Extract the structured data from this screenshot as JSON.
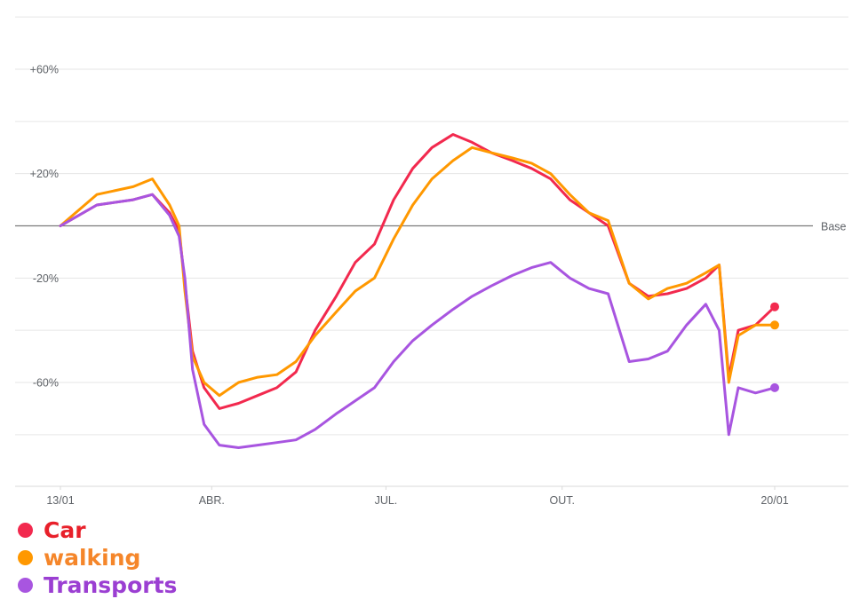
{
  "chart_data": {
    "type": "line",
    "baseline_label": "Base",
    "y_ticks": [
      {
        "value": 60,
        "label": "+60%"
      },
      {
        "value": 20,
        "label": "+20%"
      },
      {
        "value": -20,
        "label": "-20%"
      },
      {
        "value": -60,
        "label": "-60%"
      }
    ],
    "ylim": [
      -100,
      80
    ],
    "x_ticks": [
      {
        "date": "2020-01-13",
        "label": "13/01"
      },
      {
        "date": "2020-04-01",
        "label": "ABR."
      },
      {
        "date": "2020-07-01",
        "label": "JUL."
      },
      {
        "date": "2020-10-01",
        "label": "OUT."
      },
      {
        "date": "2021-01-20",
        "label": "20/01"
      }
    ],
    "xlim": [
      "2020-01-13",
      "2021-01-20"
    ],
    "grid": true,
    "legend_position": "bottom-left",
    "series": [
      {
        "name": "Car",
        "color": "#f2294e",
        "points": [
          [
            "2020-01-13",
            0
          ],
          [
            "2020-02-01",
            8
          ],
          [
            "2020-02-20",
            10
          ],
          [
            "2020-03-01",
            12
          ],
          [
            "2020-03-10",
            5
          ],
          [
            "2020-03-15",
            -2
          ],
          [
            "2020-03-18",
            -22
          ],
          [
            "2020-03-22",
            -48
          ],
          [
            "2020-03-28",
            -62
          ],
          [
            "2020-04-05",
            -70
          ],
          [
            "2020-04-15",
            -68
          ],
          [
            "2020-04-25",
            -65
          ],
          [
            "2020-05-05",
            -62
          ],
          [
            "2020-05-15",
            -56
          ],
          [
            "2020-05-25",
            -40
          ],
          [
            "2020-06-05",
            -27
          ],
          [
            "2020-06-15",
            -14
          ],
          [
            "2020-06-25",
            -7
          ],
          [
            "2020-07-05",
            10
          ],
          [
            "2020-07-15",
            22
          ],
          [
            "2020-07-25",
            30
          ],
          [
            "2020-08-05",
            35
          ],
          [
            "2020-08-15",
            32
          ],
          [
            "2020-08-25",
            28
          ],
          [
            "2020-09-05",
            25
          ],
          [
            "2020-09-15",
            22
          ],
          [
            "2020-09-25",
            18
          ],
          [
            "2020-10-05",
            10
          ],
          [
            "2020-10-15",
            5
          ],
          [
            "2020-10-25",
            0
          ],
          [
            "2020-11-05",
            -22
          ],
          [
            "2020-11-15",
            -27
          ],
          [
            "2020-11-25",
            -26
          ],
          [
            "2020-12-05",
            -24
          ],
          [
            "2020-12-15",
            -20
          ],
          [
            "2020-12-22",
            -15
          ],
          [
            "2020-12-27",
            -58
          ],
          [
            "2021-01-01",
            -40
          ],
          [
            "2021-01-10",
            -38
          ],
          [
            "2021-01-20",
            -31
          ]
        ]
      },
      {
        "name": "walking",
        "color": "#ff9800",
        "points": [
          [
            "2020-01-13",
            0
          ],
          [
            "2020-02-01",
            12
          ],
          [
            "2020-02-20",
            15
          ],
          [
            "2020-03-01",
            18
          ],
          [
            "2020-03-10",
            8
          ],
          [
            "2020-03-15",
            0
          ],
          [
            "2020-03-18",
            -25
          ],
          [
            "2020-03-22",
            -50
          ],
          [
            "2020-03-28",
            -60
          ],
          [
            "2020-04-05",
            -65
          ],
          [
            "2020-04-15",
            -60
          ],
          [
            "2020-04-25",
            -58
          ],
          [
            "2020-05-05",
            -57
          ],
          [
            "2020-05-15",
            -52
          ],
          [
            "2020-05-25",
            -42
          ],
          [
            "2020-06-05",
            -33
          ],
          [
            "2020-06-15",
            -25
          ],
          [
            "2020-06-25",
            -20
          ],
          [
            "2020-07-05",
            -5
          ],
          [
            "2020-07-15",
            8
          ],
          [
            "2020-07-25",
            18
          ],
          [
            "2020-08-05",
            25
          ],
          [
            "2020-08-15",
            30
          ],
          [
            "2020-08-25",
            28
          ],
          [
            "2020-09-05",
            26
          ],
          [
            "2020-09-15",
            24
          ],
          [
            "2020-09-25",
            20
          ],
          [
            "2020-10-05",
            12
          ],
          [
            "2020-10-15",
            5
          ],
          [
            "2020-10-25",
            2
          ],
          [
            "2020-11-05",
            -22
          ],
          [
            "2020-11-15",
            -28
          ],
          [
            "2020-11-25",
            -24
          ],
          [
            "2020-12-05",
            -22
          ],
          [
            "2020-12-15",
            -18
          ],
          [
            "2020-12-22",
            -15
          ],
          [
            "2020-12-27",
            -60
          ],
          [
            "2021-01-01",
            -42
          ],
          [
            "2021-01-10",
            -38
          ],
          [
            "2021-01-20",
            -38
          ]
        ]
      },
      {
        "name": "Transports",
        "color": "#a855e0",
        "points": [
          [
            "2020-01-13",
            0
          ],
          [
            "2020-02-01",
            8
          ],
          [
            "2020-02-20",
            10
          ],
          [
            "2020-03-01",
            12
          ],
          [
            "2020-03-10",
            4
          ],
          [
            "2020-03-15",
            -4
          ],
          [
            "2020-03-18",
            -20
          ],
          [
            "2020-03-22",
            -55
          ],
          [
            "2020-03-28",
            -76
          ],
          [
            "2020-04-05",
            -84
          ],
          [
            "2020-04-15",
            -85
          ],
          [
            "2020-04-25",
            -84
          ],
          [
            "2020-05-05",
            -83
          ],
          [
            "2020-05-15",
            -82
          ],
          [
            "2020-05-25",
            -78
          ],
          [
            "2020-06-05",
            -72
          ],
          [
            "2020-06-15",
            -67
          ],
          [
            "2020-06-25",
            -62
          ],
          [
            "2020-07-05",
            -52
          ],
          [
            "2020-07-15",
            -44
          ],
          [
            "2020-07-25",
            -38
          ],
          [
            "2020-08-05",
            -32
          ],
          [
            "2020-08-15",
            -27
          ],
          [
            "2020-08-25",
            -23
          ],
          [
            "2020-09-05",
            -19
          ],
          [
            "2020-09-15",
            -16
          ],
          [
            "2020-09-25",
            -14
          ],
          [
            "2020-10-05",
            -20
          ],
          [
            "2020-10-15",
            -24
          ],
          [
            "2020-10-25",
            -26
          ],
          [
            "2020-11-05",
            -52
          ],
          [
            "2020-11-15",
            -51
          ],
          [
            "2020-11-25",
            -48
          ],
          [
            "2020-12-05",
            -38
          ],
          [
            "2020-12-15",
            -30
          ],
          [
            "2020-12-22",
            -40
          ],
          [
            "2020-12-27",
            -80
          ],
          [
            "2021-01-01",
            -62
          ],
          [
            "2021-01-10",
            -64
          ],
          [
            "2021-01-20",
            -62
          ]
        ]
      }
    ]
  }
}
